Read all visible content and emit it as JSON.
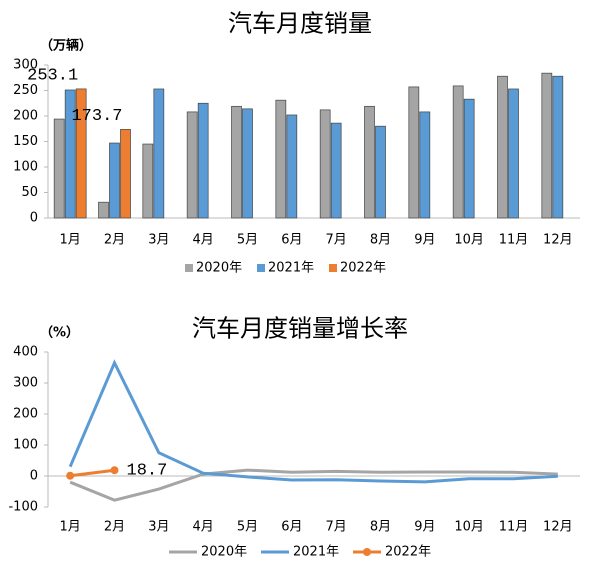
{
  "chart_data": [
    {
      "type": "bar",
      "title": "汽车月度销量",
      "y_label": "（万辆）",
      "categories": [
        "1月",
        "2月",
        "3月",
        "4月",
        "5月",
        "6月",
        "7月",
        "8月",
        "9月",
        "10月",
        "11月",
        "12月"
      ],
      "series": [
        {
          "name": "2020年",
          "color": "#a5a5a5",
          "values": [
            194,
            31,
            145,
            208,
            219,
            231,
            212,
            219,
            257,
            259,
            278,
            284
          ]
        },
        {
          "name": "2021年",
          "color": "#5b9bd5",
          "values": [
            251,
            147,
            253,
            225,
            214,
            202,
            186,
            180,
            208,
            233,
            253,
            278
          ]
        },
        {
          "name": "2022年",
          "color": "#ed7d31",
          "values": [
            253.1,
            173.7,
            null,
            null,
            null,
            null,
            null,
            null,
            null,
            null,
            null,
            null
          ],
          "show_labels": true
        }
      ],
      "ylim": [
        0,
        300
      ],
      "yticks": [
        0,
        50,
        100,
        150,
        200,
        250,
        300
      ],
      "legend": "bottom"
    },
    {
      "type": "line",
      "title": "汽车月度销量增长率",
      "y_label": "（%）",
      "categories": [
        "1月",
        "2月",
        "3月",
        "4月",
        "5月",
        "6月",
        "7月",
        "8月",
        "9月",
        "10月",
        "11月",
        "12月"
      ],
      "series": [
        {
          "name": "2020年",
          "color": "#a5a5a5",
          "values": [
            -20,
            -78,
            -42,
            6,
            19,
            12,
            15,
            12,
            13,
            13,
            12,
            6
          ]
        },
        {
          "name": "2021年",
          "color": "#5b9bd5",
          "values": [
            30,
            365,
            75,
            9,
            -3,
            -13,
            -12,
            -16,
            -19,
            -9,
            -9,
            -1
          ]
        },
        {
          "name": "2022年",
          "color": "#ed7d31",
          "values": [
            0.9,
            18.7,
            null,
            null,
            null,
            null,
            null,
            null,
            null,
            null,
            null,
            null
          ],
          "markers": true,
          "label_index": 1
        }
      ],
      "ylim": [
        -100,
        400
      ],
      "yticks": [
        -100,
        0,
        100,
        200,
        300,
        400
      ],
      "legend": "bottom"
    }
  ]
}
